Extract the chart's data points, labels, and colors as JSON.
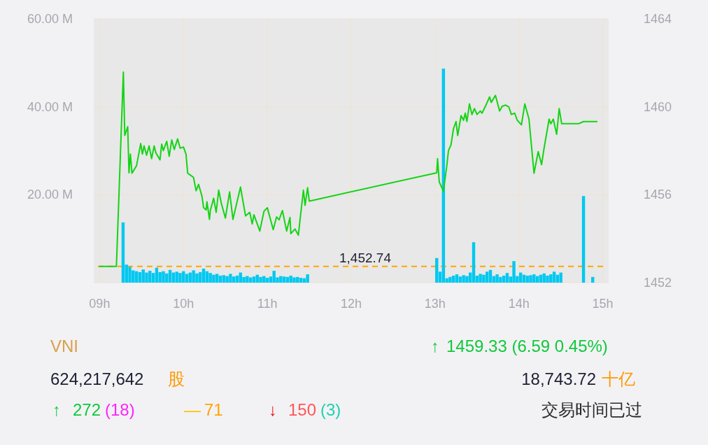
{
  "chart_data": {
    "type": "bar",
    "xlim": [
      8.93,
      15.07
    ],
    "xticks": [
      {
        "value": 9,
        "label": "09h"
      },
      {
        "value": 10,
        "label": "10h"
      },
      {
        "value": 11,
        "label": "11h"
      },
      {
        "value": 12,
        "label": "12h"
      },
      {
        "value": 13,
        "label": "13h"
      },
      {
        "value": 14,
        "label": "14h"
      },
      {
        "value": 15,
        "label": "15h"
      }
    ],
    "ylim": [
      0,
      60
    ],
    "yticks": [
      {
        "value": 20,
        "label": "20.00 M"
      },
      {
        "value": 40,
        "label": "40.00 M"
      },
      {
        "value": 60,
        "label": "60.00 M"
      }
    ],
    "y2lim": [
      1452,
      1464
    ],
    "y2ticks": [
      1452,
      1456,
      1460,
      1464
    ],
    "grid": true,
    "series": [
      {
        "color": "#00c8f0",
        "x": [
          9.28,
          9.32,
          9.36,
          9.4,
          9.44,
          9.48,
          9.52,
          9.56,
          9.6,
          9.64,
          9.68,
          9.72,
          9.76,
          9.8,
          9.84,
          9.88,
          9.92,
          9.96,
          10.0,
          10.04,
          10.08,
          10.12,
          10.16,
          10.2,
          10.24,
          10.28,
          10.32,
          10.36,
          10.4,
          10.44,
          10.48,
          10.52,
          10.56,
          10.6,
          10.64,
          10.68,
          10.72,
          10.76,
          10.8,
          10.84,
          10.88,
          10.92,
          10.96,
          11.0,
          11.04,
          11.08,
          11.12,
          11.16,
          11.2,
          11.24,
          11.28,
          11.32,
          11.36,
          11.4,
          11.44,
          11.48,
          13.02,
          13.06,
          13.1,
          13.14,
          13.18,
          13.22,
          13.26,
          13.3,
          13.34,
          13.38,
          13.42,
          13.46,
          13.5,
          13.54,
          13.58,
          13.62,
          13.66,
          13.7,
          13.74,
          13.78,
          13.82,
          13.86,
          13.9,
          13.94,
          13.98,
          14.02,
          14.06,
          14.1,
          14.14,
          14.18,
          14.22,
          14.26,
          14.3,
          14.34,
          14.38,
          14.42,
          14.46,
          14.5,
          14.77,
          14.88
        ],
        "values": [
          13.7,
          4.1,
          3.6,
          2.8,
          2.6,
          2.4,
          3.0,
          2.3,
          2.7,
          2.2,
          3.4,
          2.4,
          2.6,
          2.1,
          2.9,
          2.3,
          2.5,
          2.2,
          2.6,
          2.0,
          2.3,
          2.8,
          2.1,
          2.4,
          3.2,
          2.6,
          2.2,
          1.8,
          2.0,
          1.6,
          1.7,
          1.5,
          2.0,
          1.4,
          1.6,
          2.3,
          1.3,
          1.5,
          1.2,
          1.4,
          1.8,
          1.3,
          1.5,
          1.1,
          1.4,
          2.7,
          1.2,
          1.5,
          1.4,
          1.3,
          1.6,
          1.2,
          1.3,
          1.1,
          1.0,
          1.9,
          5.6,
          2.5,
          48.7,
          1.0,
          1.3,
          1.6,
          1.9,
          1.4,
          1.7,
          1.5,
          2.3,
          9.2,
          1.6,
          2.0,
          1.8,
          2.5,
          2.9,
          1.5,
          1.9,
          1.3,
          1.6,
          2.2,
          1.4,
          4.9,
          1.5,
          2.3,
          1.8,
          1.6,
          1.7,
          1.9,
          1.5,
          1.8,
          2.1,
          1.6,
          1.9,
          2.5,
          1.8,
          2.3,
          19.7,
          1.3
        ]
      },
      {
        "type": "line",
        "axis": "y2",
        "color": "#14d414",
        "x": [
          9.0,
          9.2,
          9.283,
          9.3,
          9.335,
          9.35,
          9.367,
          9.386,
          9.44,
          9.49,
          9.51,
          9.53,
          9.56,
          9.59,
          9.62,
          9.65,
          9.67,
          9.72,
          9.74,
          9.76,
          9.8,
          9.83,
          9.86,
          9.89,
          9.93,
          9.96,
          10.0,
          10.03,
          10.05,
          10.08,
          10.12,
          10.15,
          10.18,
          10.22,
          10.24,
          10.27,
          10.28,
          10.31,
          10.32,
          10.36,
          10.39,
          10.42,
          10.45,
          10.5,
          10.55,
          10.59,
          10.68,
          10.74,
          10.79,
          10.82,
          10.84,
          10.91,
          10.96,
          11.0,
          11.07,
          11.11,
          11.14,
          11.18,
          11.23,
          11.27,
          11.28,
          11.33,
          11.37,
          11.39,
          11.43,
          11.45,
          11.48,
          11.5,
          13.02,
          13.03,
          13.05,
          13.1,
          13.14,
          13.16,
          13.19,
          13.22,
          13.25,
          13.27,
          13.31,
          13.34,
          13.36,
          13.38,
          13.41,
          13.44,
          13.47,
          13.5,
          13.54,
          13.56,
          13.6,
          13.65,
          13.67,
          13.72,
          13.77,
          13.8,
          13.84,
          13.88,
          13.91,
          13.95,
          13.98,
          14.03,
          14.07,
          14.12,
          14.18,
          14.23,
          14.27,
          14.3,
          14.36,
          14.38,
          14.41,
          14.45,
          14.48,
          14.51,
          14.71,
          14.77,
          14.93
        ],
        "values": [
          1452.74,
          1452.74,
          1461.58,
          1458.7,
          1459.1,
          1457.0,
          1457.85,
          1456.98,
          1457.32,
          1458.33,
          1457.85,
          1458.22,
          1457.8,
          1458.22,
          1457.64,
          1458.22,
          1457.91,
          1457.59,
          1458.3,
          1458.01,
          1458.43,
          1457.75,
          1458.49,
          1458.06,
          1458.54,
          1458.12,
          1458.17,
          1457.85,
          1456.98,
          1456.9,
          1456.79,
          1456.18,
          1456.47,
          1455.94,
          1455.41,
          1455.31,
          1455.68,
          1454.88,
          1455.28,
          1455.84,
          1455.2,
          1456.21,
          1455.63,
          1454.94,
          1456.13,
          1454.88,
          1456.35,
          1455.04,
          1455.2,
          1454.67,
          1455.09,
          1454.35,
          1455.25,
          1455.41,
          1454.41,
          1454.99,
          1454.86,
          1455.28,
          1454.35,
          1454.97,
          1454.23,
          1454.44,
          1454.16,
          1454.86,
          1456.21,
          1455.52,
          1456.32,
          1455.71,
          1457.0,
          1457.64,
          1456.58,
          1456.16,
          1457.32,
          1458.01,
          1458.27,
          1459.01,
          1459.33,
          1458.7,
          1459.6,
          1459.39,
          1459.71,
          1459.33,
          1460.13,
          1459.65,
          1459.92,
          1459.65,
          1459.81,
          1459.71,
          1460.02,
          1460.45,
          1460.2,
          1460.52,
          1459.81,
          1460.02,
          1460.08,
          1459.99,
          1459.65,
          1459.71,
          1459.39,
          1459.18,
          1460.13,
          1459.44,
          1456.98,
          1457.96,
          1457.37,
          1458.12,
          1459.44,
          1459.23,
          1459.44,
          1458.75,
          1459.92,
          1459.23,
          1459.23,
          1459.33,
          1459.33
        ]
      }
    ],
    "ref_lines": [
      {
        "axis": "y2",
        "value": 1452.74,
        "label": "1,452.74",
        "color": "#ffa500",
        "line_style": "dashed"
      }
    ],
    "annotations": [
      "VNI",
      "↑",
      "1459.33 (6.59 0.45%)",
      "624,217,642",
      "股",
      "18,743.72",
      "十亿",
      "↑",
      "272",
      "(18)",
      "—",
      "71",
      "↓",
      "150",
      "(3)",
      "交易时间已过"
    ]
  }
}
